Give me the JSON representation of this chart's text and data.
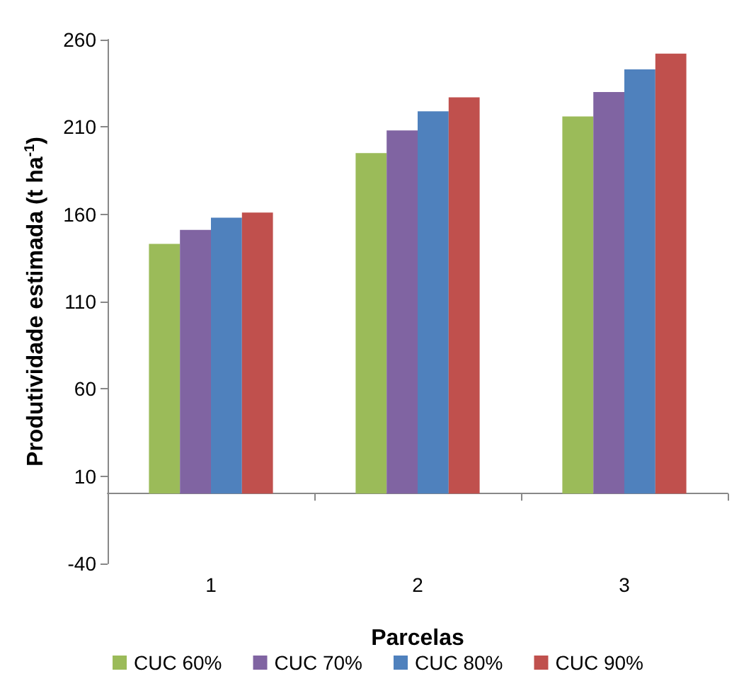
{
  "chart_data": {
    "type": "bar",
    "xlabel": "Parcelas",
    "ylabel": "Produtividade estimada (t ha$^{-1}$)",
    "categories": [
      "1",
      "2",
      "3"
    ],
    "series": [
      {
        "name": "CUC 60%",
        "color": "#9bbb59",
        "values": [
          143,
          195,
          216
        ]
      },
      {
        "name": "CUC 70%",
        "color": "#8064a2",
        "values": [
          151,
          208,
          230
        ]
      },
      {
        "name": "CUC 80%",
        "color": "#4f81bd",
        "values": [
          158,
          219,
          243
        ]
      },
      {
        "name": "CUC 90%",
        "color": "#c0504d",
        "values": [
          161,
          227,
          252
        ]
      }
    ],
    "ylim": [
      -40,
      260
    ],
    "yticks": [
      -40,
      10,
      60,
      110,
      160,
      210,
      260
    ],
    "grid": false,
    "legend": "bottom"
  }
}
